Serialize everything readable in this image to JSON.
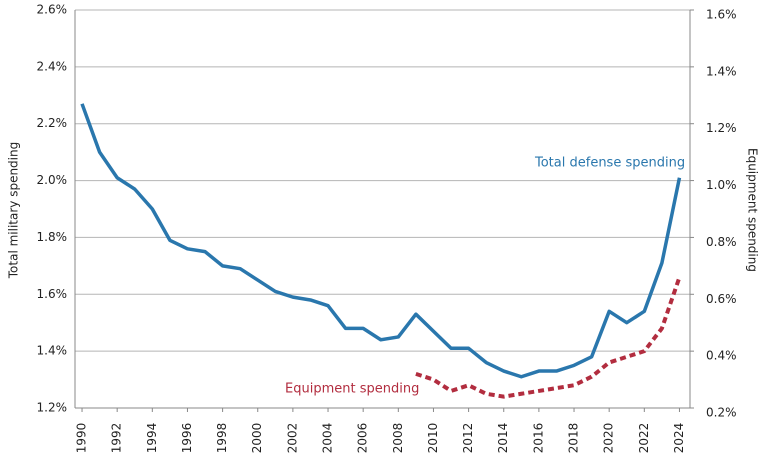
{
  "chart_data": {
    "type": "line",
    "y_label": "Total military spending",
    "y2_label": "Equipment spending",
    "annotations": [
      "Total defense spending",
      "Equipment spending"
    ],
    "x": [
      1990,
      1991,
      1992,
      1993,
      1994,
      1995,
      1996,
      1997,
      1998,
      1999,
      2000,
      2001,
      2002,
      2003,
      2004,
      2005,
      2006,
      2007,
      2008,
      2009,
      2010,
      2011,
      2012,
      2013,
      2014,
      2015,
      2016,
      2017,
      2018,
      2019,
      2020,
      2021,
      2022,
      2023,
      2024
    ],
    "series": [
      {
        "name": "Total defense spending",
        "color": "#2a77ad",
        "axis": "y",
        "dashed": false,
        "values": [
          2.27,
          2.1,
          2.01,
          1.97,
          1.9,
          1.79,
          1.76,
          1.75,
          1.7,
          1.69,
          1.65,
          1.61,
          1.59,
          1.58,
          1.56,
          1.48,
          1.48,
          1.44,
          1.45,
          1.53,
          1.47,
          1.41,
          1.41,
          1.36,
          1.33,
          1.31,
          1.33,
          1.33,
          1.35,
          1.38,
          1.54,
          1.5,
          1.54,
          1.71,
          2.01
        ]
      },
      {
        "name": "Equipment spending",
        "color": "#b22d3f",
        "axis": "y2",
        "dashed": true,
        "values": [
          null,
          null,
          null,
          null,
          null,
          null,
          null,
          null,
          null,
          null,
          null,
          null,
          null,
          null,
          null,
          null,
          null,
          null,
          null,
          0.32,
          0.3,
          0.26,
          0.28,
          0.25,
          0.24,
          0.25,
          0.26,
          0.27,
          0.28,
          0.31,
          0.36,
          0.38,
          0.4,
          0.48,
          0.66
        ]
      }
    ],
    "xlim": [
      1989.6,
      2024.6
    ],
    "xticks": [
      1990,
      1992,
      1994,
      1996,
      1998,
      2000,
      2002,
      2004,
      2006,
      2008,
      2010,
      2012,
      2014,
      2016,
      2018,
      2020,
      2022,
      2024
    ],
    "ylim": [
      1.2,
      2.6
    ],
    "yticks": [
      {
        "value": 1.2,
        "label": "1.2%"
      },
      {
        "value": 1.4,
        "label": "1.4%"
      },
      {
        "value": 1.6,
        "label": "1.6%"
      },
      {
        "value": 1.8,
        "label": "1.8%"
      },
      {
        "value": 2.0,
        "label": "2.0%"
      },
      {
        "value": 2.2,
        "label": "2.2%"
      },
      {
        "value": 2.4,
        "label": "2.4%"
      },
      {
        "value": 2.6,
        "label": "2.6%"
      }
    ],
    "y2lim": [
      0.2,
      1.6
    ],
    "y2ticks": [
      {
        "value": 0.2,
        "label": "0.2%"
      },
      {
        "value": 0.4,
        "label": "0.4%"
      },
      {
        "value": 0.6,
        "label": "0.6%"
      },
      {
        "value": 0.8,
        "label": "0.8%"
      },
      {
        "value": 1.0,
        "label": "1.0%"
      },
      {
        "value": 1.2,
        "label": "1.2%"
      },
      {
        "value": 1.4,
        "label": "1.4%"
      },
      {
        "value": 1.6,
        "label": "1.6%"
      }
    ],
    "grid": true
  }
}
